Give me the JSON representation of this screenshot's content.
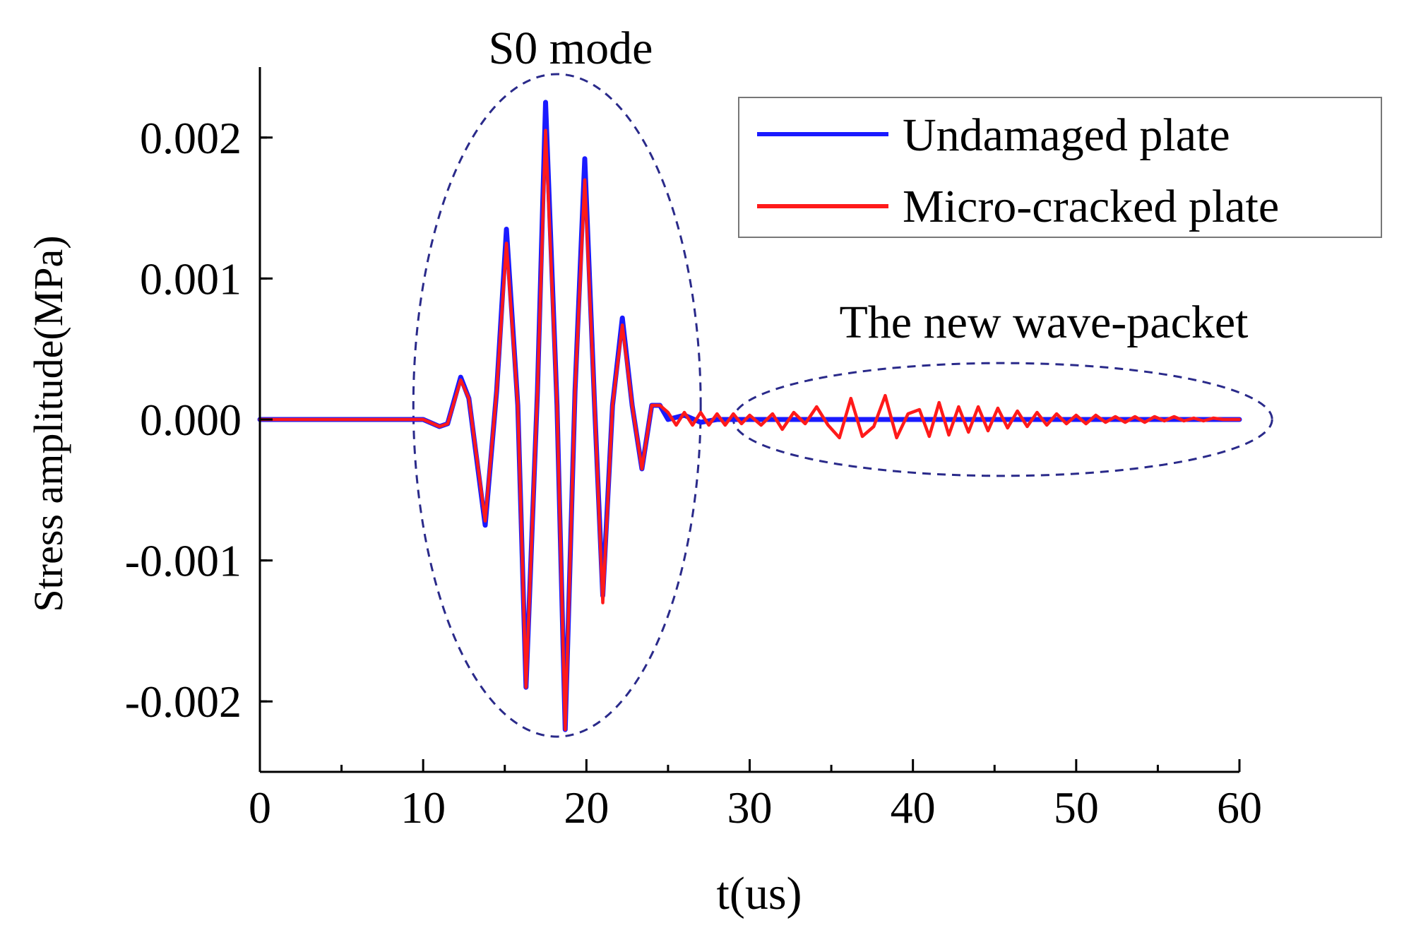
{
  "chart_data": {
    "type": "line",
    "title": "",
    "xlabel": "t(us)",
    "ylabel": "Stress amplitude(MPa)",
    "xlim": [
      0,
      60
    ],
    "ylim": [
      -0.0025,
      0.0025
    ],
    "x_ticks": [
      0,
      10,
      20,
      30,
      40,
      50,
      60
    ],
    "x_tick_labels": [
      "0",
      "10",
      "20",
      "30",
      "40",
      "50",
      "60"
    ],
    "y_ticks": [
      -0.002,
      -0.001,
      0.0,
      0.001,
      0.002
    ],
    "y_tick_labels": [
      "-0.002",
      "-0.001",
      "0.000",
      "0.001",
      "0.002"
    ],
    "grid": false,
    "legend": {
      "location": "top-right"
    },
    "series": [
      {
        "name": "Undamaged plate",
        "color": "#1a1aff",
        "x": [
          0,
          10,
          11,
          11.5,
          12.3,
          12.8,
          13.8,
          14.5,
          15.1,
          15.8,
          16.3,
          17.0,
          17.5,
          18.2,
          18.7,
          19.3,
          19.9,
          20.5,
          21.0,
          21.6,
          22.2,
          22.8,
          23.4,
          24.0,
          24.5,
          25.0,
          26.0,
          27.0,
          28.0,
          30.0,
          35.0,
          40.0,
          45.0,
          50.0,
          55.0,
          60.0
        ],
        "y": [
          0,
          0,
          -5e-05,
          -3e-05,
          0.0003,
          0.00015,
          -0.00075,
          0.0002,
          0.00135,
          0.0001,
          -0.0019,
          0.0002,
          0.00225,
          0.0001,
          -0.0022,
          0.0002,
          0.00185,
          0.0001,
          -0.00125,
          0.0001,
          0.00072,
          0.0001,
          -0.00035,
          0.0001,
          0.0001,
          0.0,
          3e-05,
          -2e-05,
          0.0,
          0.0,
          0.0,
          0.0,
          0.0,
          0.0,
          0.0,
          0.0
        ]
      },
      {
        "name": "Micro-cracked plate",
        "color": "#ff1a1a",
        "x": [
          0,
          10,
          11,
          11.5,
          12.3,
          12.8,
          13.8,
          14.5,
          15.1,
          15.8,
          16.3,
          17.0,
          17.5,
          18.2,
          18.7,
          19.3,
          19.9,
          20.5,
          21.0,
          21.6,
          22.2,
          22.8,
          23.4,
          24.0,
          24.5,
          25.0,
          25.5,
          26.0,
          26.5,
          27.0,
          27.5,
          28.0,
          28.5,
          29.0,
          29.5,
          30.0,
          30.7,
          31.4,
          32.0,
          32.7,
          33.4,
          34.1,
          34.8,
          35.5,
          36.2,
          36.9,
          37.6,
          38.3,
          39.0,
          39.7,
          40.4,
          41.0,
          41.6,
          42.2,
          42.8,
          43.4,
          44.0,
          44.6,
          45.2,
          45.8,
          46.4,
          47.0,
          47.6,
          48.2,
          48.8,
          49.4,
          50.0,
          50.6,
          51.2,
          51.8,
          52.4,
          53.0,
          53.6,
          54.2,
          54.8,
          55.4,
          56.0,
          56.6,
          57.2,
          57.8,
          58.4,
          59.0,
          60.0
        ],
        "y": [
          0,
          0,
          -5e-05,
          -3e-05,
          0.00028,
          0.00015,
          -0.00072,
          0.0002,
          0.00125,
          0.0001,
          -0.0019,
          0.0002,
          0.00205,
          0.0001,
          -0.0022,
          0.0002,
          0.0017,
          0.0001,
          -0.0013,
          0.0001,
          0.00067,
          0.0001,
          -0.00035,
          0.0001,
          0.0001,
          5e-05,
          -4e-05,
          5e-05,
          -4e-05,
          5e-05,
          -4e-05,
          4e-05,
          -4e-05,
          4e-05,
          -3e-05,
          3e-05,
          -4e-05,
          4e-05,
          -7e-05,
          5e-05,
          -3e-05,
          9e-05,
          -4e-05,
          -0.00013,
          0.00015,
          -0.00012,
          -5e-05,
          0.00017,
          -0.00013,
          4e-05,
          7e-05,
          -0.00012,
          0.00012,
          -0.00011,
          9e-05,
          -9e-05,
          9e-05,
          -8e-05,
          8e-05,
          -6e-05,
          6e-05,
          -5e-05,
          5e-05,
          -4e-05,
          4e-05,
          -3e-05,
          3e-05,
          -3e-05,
          3e-05,
          -2e-05,
          2e-05,
          -2e-05,
          2e-05,
          -2e-05,
          2e-05,
          -1e-05,
          2e-05,
          -1e-05,
          1e-05,
          -1e-05,
          1e-05,
          0.0,
          0.0
        ]
      }
    ],
    "annotations": [
      {
        "text": "S0 mode",
        "shape": "dashed-ellipse",
        "color": "#2a2a8a",
        "x_range": [
          9.4,
          27.0
        ],
        "y_range": [
          -0.00225,
          0.00245
        ]
      },
      {
        "text": "The new wave-packet",
        "shape": "dashed-ellipse",
        "color": "#2a2a8a",
        "x_range": [
          29.0,
          62.0
        ],
        "y_range": [
          -0.0004,
          0.0004
        ]
      }
    ]
  }
}
